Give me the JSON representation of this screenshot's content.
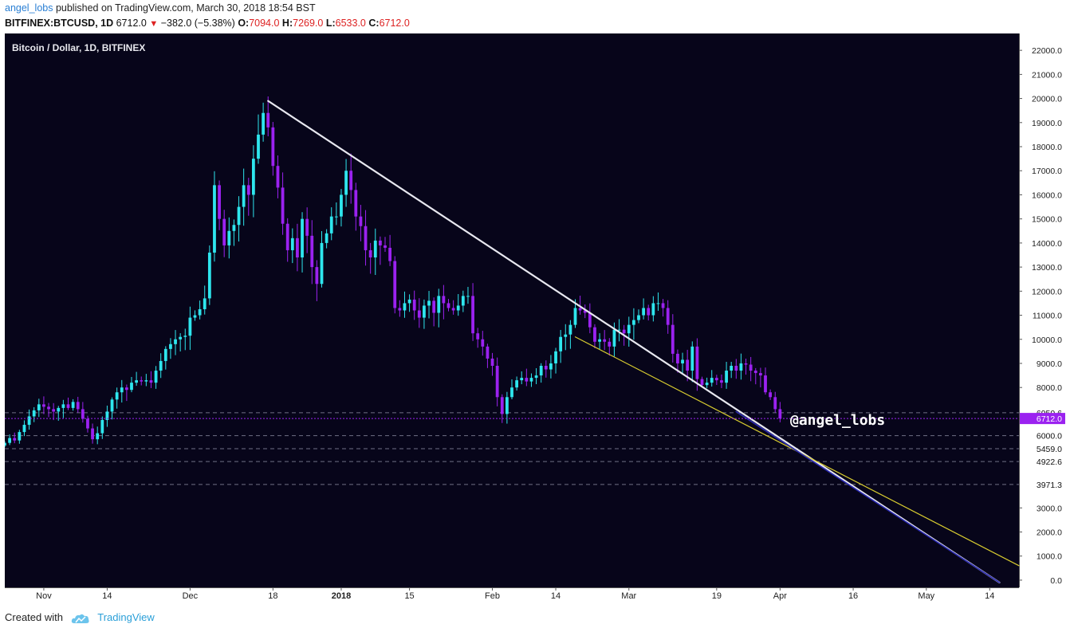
{
  "header": {
    "username": "angel_lobs",
    "published_text": "published on TradingView.com, March 30, 2018 18:54 BST",
    "symbol": "BITFINEX:BTCUSD, 1D",
    "last": "6712.0",
    "change": "−382.0 (−5.38%)",
    "open_label": "O:",
    "open": "7094.0",
    "high_label": "H:",
    "high": "7269.0",
    "low_label": "L:",
    "low": "6533.0",
    "close_label": "C:",
    "close": "6712.0"
  },
  "footer": {
    "created_with": "Created with",
    "brand": "TradingView"
  },
  "colors": {
    "background": "#07051a",
    "up": "#2ee6ee",
    "down": "#9b22f0",
    "trend_white": "#e8e8f0",
    "trend_yellow": "#d8cc30",
    "trend_blue": "#2a2ab0",
    "price_tag": "#9b22f0",
    "level_line": "#8a8aa0"
  },
  "chart_data": {
    "type": "candlestick",
    "title": "Bitcoin / Dollar, 1D, BITFINEX",
    "watermark": "@angel_lobs",
    "x_start": "2017-10-24",
    "x_end": "2018-05-20",
    "ylim": [
      -300,
      22700
    ],
    "y_ticks": [
      22000,
      21000,
      20000,
      19000,
      18000,
      17000,
      16000,
      15000,
      14000,
      13000,
      12000,
      11000,
      10000,
      9000,
      8000,
      7000,
      6000,
      5000,
      4000,
      3000,
      2000,
      1000,
      0
    ],
    "y_tick_labels": [
      "22000.0",
      "21000.0",
      "20000.0",
      "19000.0",
      "18000.0",
      "17000.0",
      "16000.0",
      "15000.0",
      "14000.0",
      "13000.0",
      "12000.0",
      "11000.0",
      "10000.0",
      "9000.0",
      "8000.0",
      "7000.0",
      "6000.0",
      "5000.0",
      "4000.0",
      "3000.0",
      "2000.0",
      "1000.0",
      "0.0"
    ],
    "x_ticks": [
      {
        "date": "2017-11-01",
        "label": "Nov",
        "bold": false
      },
      {
        "date": "2017-11-14",
        "label": "14",
        "bold": false
      },
      {
        "date": "2017-12-01",
        "label": "Dec",
        "bold": false
      },
      {
        "date": "2017-12-18",
        "label": "18",
        "bold": false
      },
      {
        "date": "2018-01-01",
        "label": "2018",
        "bold": true
      },
      {
        "date": "2018-01-15",
        "label": "15",
        "bold": false
      },
      {
        "date": "2018-02-01",
        "label": "Feb",
        "bold": false
      },
      {
        "date": "2018-02-14",
        "label": "14",
        "bold": false
      },
      {
        "date": "2018-03-01",
        "label": "Mar",
        "bold": false
      },
      {
        "date": "2018-03-19",
        "label": "19",
        "bold": false
      },
      {
        "date": "2018-04-01",
        "label": "Apr",
        "bold": false
      },
      {
        "date": "2018-04-16",
        "label": "16",
        "bold": false
      },
      {
        "date": "2018-05-01",
        "label": "May",
        "bold": false
      },
      {
        "date": "2018-05-14",
        "label": "14",
        "bold": false
      }
    ],
    "levels": [
      {
        "value": 6950.6,
        "label": "6950.6"
      },
      {
        "value": 6000.0,
        "label": "6000.0"
      },
      {
        "value": 5459.0,
        "label": "5459.0"
      },
      {
        "value": 4922.6,
        "label": "4922.6"
      },
      {
        "value": 3971.3,
        "label": "3971.3"
      }
    ],
    "last_price": {
      "value": 6712.0,
      "label": "6712.0"
    },
    "trendlines": [
      {
        "color": "white",
        "from": {
          "date": "2017-12-17",
          "value": 19900
        },
        "to": {
          "date": "2018-05-16",
          "value": -100
        }
      },
      {
        "color": "yellow",
        "from": {
          "date": "2018-02-18",
          "value": 10100
        },
        "to": {
          "date": "2018-05-20",
          "value": 600
        }
      },
      {
        "color": "blue",
        "from": {
          "date": "2018-03-23",
          "value": 7000
        },
        "to": {
          "date": "2018-05-16",
          "value": -100
        }
      }
    ],
    "close_series": [
      5700,
      5900,
      5800,
      6150,
      6450,
      6800,
      7050,
      7300,
      7200,
      7100,
      7000,
      7150,
      7300,
      7150,
      7400,
      7100,
      6700,
      6300,
      5850,
      6100,
      6650,
      7000,
      7500,
      7800,
      8000,
      7900,
      8200,
      8300,
      8250,
      8300,
      8200,
      8700,
      9100,
      9600,
      9800,
      10000,
      10100,
      10150,
      10900,
      11000,
      11250,
      11700,
      13600,
      16400,
      15000,
      13900,
      14500,
      14750,
      15500,
      16400,
      16000,
      17500,
      18500,
      19400,
      18800,
      17200,
      16300,
      14800,
      13700,
      14200,
      13400,
      15000,
      14300,
      13000,
      12300,
      14000,
      14400,
      15100,
      15100,
      16000,
      17000,
      16200,
      15100,
      14700,
      13700,
      13400,
      14100,
      13900,
      13800,
      13250,
      11300,
      11200,
      11500,
      11650,
      11200,
      10900,
      11400,
      11600,
      11100,
      11800,
      11500,
      11300,
      11200,
      11400,
      11800,
      11800,
      10250,
      10000,
      9700,
      9200,
      8900,
      7600,
      6900,
      7600,
      8000,
      8300,
      8400,
      8250,
      8400,
      8500,
      8900,
      8750,
      9000,
      9500,
      10100,
      10200,
      10600,
      11300,
      11200,
      11100,
      10500,
      9900,
      10000,
      9900,
      9700,
      10400,
      10400,
      10250,
      10600,
      10800,
      11000,
      11300,
      11000,
      11500,
      11500,
      11300,
      10600,
      9400,
      9000,
      9150,
      8700,
      9700,
      8350,
      8100,
      8200,
      8400,
      8300,
      8200,
      8700,
      8900,
      8700,
      9000,
      8950,
      8700,
      8600,
      8500,
      7800,
      7600,
      7100,
      6712
    ]
  }
}
